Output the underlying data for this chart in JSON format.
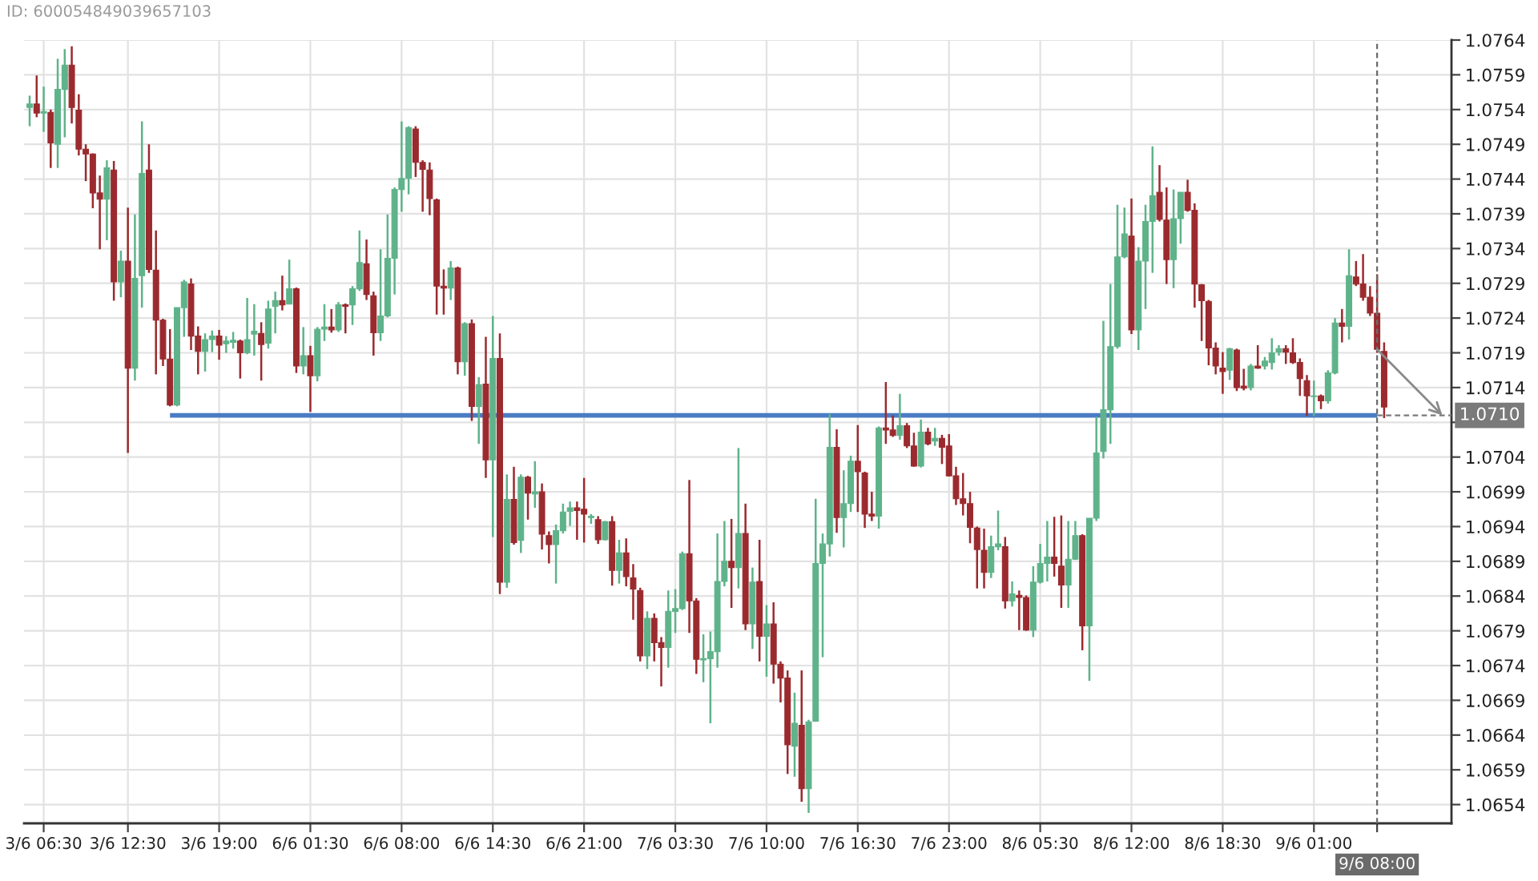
{
  "chart_data": {
    "type": "candlestick",
    "annotations": [
      "ID: 600054849039657103"
    ],
    "categories": [
      null,
      null,
      "3/6 06:30",
      null,
      null,
      null,
      null,
      null,
      null,
      null,
      null,
      null,
      null,
      null,
      "3/6 12:30",
      null,
      null,
      null,
      null,
      null,
      null,
      null,
      null,
      null,
      null,
      null,
      null,
      "3/6 19:00",
      null,
      null,
      null,
      null,
      null,
      null,
      null,
      null,
      null,
      null,
      null,
      null,
      "6/6 01:30",
      null,
      null,
      null,
      null,
      null,
      null,
      null,
      null,
      null,
      null,
      null,
      null,
      "6/6 08:00",
      null,
      null,
      null,
      null,
      null,
      null,
      null,
      null,
      null,
      null,
      null,
      null,
      "6/6 14:30",
      null,
      null,
      null,
      null,
      null,
      null,
      null,
      null,
      null,
      null,
      null,
      null,
      "6/6 21:00",
      null,
      null,
      null,
      null,
      null,
      null,
      null,
      null,
      null,
      null,
      null,
      null,
      "7/6 03:30",
      null,
      null,
      null,
      null,
      null,
      null,
      null,
      null,
      null,
      null,
      null,
      null,
      "7/6 10:00",
      null,
      null,
      null,
      null,
      null,
      null,
      null,
      null,
      null,
      null,
      null,
      null,
      "7/6 16:30",
      null,
      null,
      null,
      null,
      null,
      null,
      null,
      null,
      null,
      null,
      null,
      null,
      "7/6 23:00",
      null,
      null,
      null,
      null,
      null,
      null,
      null,
      null,
      null,
      null,
      null,
      null,
      "8/6 05:30",
      null,
      null,
      null,
      null,
      null,
      null,
      null,
      null,
      null,
      null,
      null,
      null,
      "8/6 12:00",
      null,
      null,
      null,
      null,
      null,
      null,
      null,
      null,
      null,
      null,
      null,
      null,
      "8/6 18:30",
      null,
      null,
      null,
      null,
      null,
      null,
      null,
      null,
      null,
      null,
      null,
      null,
      "9/6 01:00",
      null,
      null,
      null,
      null,
      null,
      null,
      null,
      null,
      "9/6 08:00",
      null
    ],
    "ohlc": [
      [
        1.07543,
        1.0756,
        1.07516,
        1.07548
      ],
      [
        1.07548,
        1.07589,
        1.07529,
        1.07535
      ],
      [
        1.07535,
        1.07573,
        1.07508,
        1.07537
      ],
      [
        1.07536,
        1.0754,
        1.07456,
        1.07492
      ],
      [
        1.0749,
        1.07613,
        1.07456,
        1.07569
      ],
      [
        1.07569,
        1.07627,
        1.075,
        1.07604
      ],
      [
        1.07604,
        1.07631,
        1.0752,
        1.07543
      ],
      [
        1.07539,
        1.07562,
        1.07474,
        1.07483
      ],
      [
        1.07483,
        1.0749,
        1.07437,
        1.07476
      ],
      [
        1.07476,
        1.07477,
        1.07398,
        1.0742
      ],
      [
        1.0742,
        1.07445,
        1.07339,
        1.07411
      ],
      [
        1.07411,
        1.07467,
        1.07352,
        1.07456
      ],
      [
        1.07453,
        1.07466,
        1.07265,
        1.07292
      ],
      [
        1.07292,
        1.07337,
        1.0727,
        1.07322
      ],
      [
        1.07322,
        1.07399,
        1.07046,
        1.07168
      ],
      [
        1.07168,
        1.07389,
        1.0715,
        1.07297
      ],
      [
        1.07301,
        1.07523,
        1.07255,
        1.07448
      ],
      [
        1.07453,
        1.0749,
        1.07305,
        1.0731
      ],
      [
        1.07309,
        1.07366,
        1.07159,
        1.07237
      ],
      [
        1.07237,
        1.07239,
        1.07171,
        1.07181
      ],
      [
        1.07181,
        1.07224,
        1.07113,
        1.07115
      ],
      [
        1.07115,
        1.07255,
        1.07113,
        1.07255
      ],
      [
        1.07255,
        1.07295,
        1.07213,
        1.07292
      ],
      [
        1.07289,
        1.07297,
        1.07194,
        1.07214
      ],
      [
        1.07214,
        1.07228,
        1.07159,
        1.07192
      ],
      [
        1.07192,
        1.07218,
        1.07163,
        1.07209
      ],
      [
        1.07209,
        1.07222,
        1.07191,
        1.07214
      ],
      [
        1.07214,
        1.07223,
        1.0718,
        1.07201
      ],
      [
        1.07203,
        1.07214,
        1.0719,
        1.07207
      ],
      [
        1.07205,
        1.0722,
        1.07196,
        1.07208
      ],
      [
        1.07207,
        1.07209,
        1.07153,
        1.0719
      ],
      [
        1.0719,
        1.07269,
        1.07188,
        1.07209
      ],
      [
        1.07217,
        1.0726,
        1.07186,
        1.07221
      ],
      [
        1.07218,
        1.07234,
        1.0715,
        1.07202
      ],
      [
        1.07204,
        1.07265,
        1.07196,
        1.07253
      ],
      [
        1.07257,
        1.07278,
        1.07218,
        1.07265
      ],
      [
        1.07265,
        1.07301,
        1.07251,
        1.07259
      ],
      [
        1.0726,
        1.07324,
        1.0726,
        1.07282
      ],
      [
        1.07282,
        1.07284,
        1.07161,
        1.07171
      ],
      [
        1.07171,
        1.07227,
        1.07159,
        1.07186
      ],
      [
        1.07186,
        1.072,
        1.07105,
        1.07157
      ],
      [
        1.07157,
        1.07227,
        1.07149,
        1.07224
      ],
      [
        1.07224,
        1.0726,
        1.07207,
        1.07227
      ],
      [
        1.07227,
        1.07253,
        1.07219,
        1.07223
      ],
      [
        1.07223,
        1.07263,
        1.0722,
        1.07259
      ],
      [
        1.07259,
        1.07261,
        1.07218,
        1.07257
      ],
      [
        1.07259,
        1.07286,
        1.0723,
        1.07282
      ],
      [
        1.07282,
        1.07366,
        1.07279,
        1.0732
      ],
      [
        1.07318,
        1.07353,
        1.07266,
        1.07274
      ],
      [
        1.07272,
        1.07278,
        1.07186,
        1.07219
      ],
      [
        1.07219,
        1.07339,
        1.07207,
        1.07243
      ],
      [
        1.07243,
        1.07389,
        1.07241,
        1.07326
      ],
      [
        1.07326,
        1.07428,
        1.07274,
        1.07425
      ],
      [
        1.07425,
        1.07523,
        1.07393,
        1.07441
      ],
      [
        1.07441,
        1.07516,
        1.07418,
        1.07514
      ],
      [
        1.07512,
        1.07516,
        1.07443,
        1.07464
      ],
      [
        1.07464,
        1.07467,
        1.07393,
        1.07454
      ],
      [
        1.07453,
        1.07464,
        1.07388,
        1.07412
      ],
      [
        1.0741,
        1.07412,
        1.07245,
        1.07286
      ],
      [
        1.07286,
        1.0731,
        1.07245,
        1.07283
      ],
      [
        1.07283,
        1.07322,
        1.07266,
        1.07312
      ],
      [
        1.07312,
        1.07314,
        1.07159,
        1.07177
      ],
      [
        1.07177,
        1.07234,
        1.07157,
        1.07232
      ],
      [
        1.07232,
        1.07238,
        1.07092,
        1.07113
      ],
      [
        1.07113,
        1.07155,
        1.07059,
        1.07144
      ],
      [
        1.07145,
        1.07213,
        1.0701,
        1.07036
      ],
      [
        1.07036,
        1.07243,
        1.06925,
        1.07182
      ],
      [
        1.07182,
        1.07218,
        1.06843,
        1.0686
      ],
      [
        1.0686,
        1.07015,
        1.06852,
        1.06979
      ],
      [
        1.06979,
        1.07026,
        1.06914,
        1.06917
      ],
      [
        1.0692,
        1.07015,
        1.06902,
        1.07011
      ],
      [
        1.07011,
        1.07013,
        1.0695,
        1.06988
      ],
      [
        1.06987,
        1.07034,
        1.06967,
        1.0699
      ],
      [
        1.0699,
        1.07002,
        1.06907,
        1.06929
      ],
      [
        1.06927,
        1.06933,
        1.06887,
        1.06914
      ],
      [
        1.06914,
        1.06943,
        1.06858,
        1.06934
      ],
      [
        1.06934,
        1.06973,
        1.0693,
        1.06961
      ],
      [
        1.06962,
        1.06976,
        1.06941,
        1.06967
      ],
      [
        1.06967,
        1.06976,
        1.06921,
        1.06963
      ],
      [
        1.06965,
        1.0701,
        1.06917,
        1.06958
      ],
      [
        1.06953,
        1.06958,
        1.06944,
        1.06955
      ],
      [
        1.0695,
        1.06955,
        1.06915,
        1.06921
      ],
      [
        1.06921,
        1.06948,
        1.0692,
        1.06947
      ],
      [
        1.06947,
        1.06955,
        1.06855,
        1.06877
      ],
      [
        1.06877,
        1.06921,
        1.06858,
        1.06902
      ],
      [
        1.06902,
        1.06923,
        1.06854,
        1.06868
      ],
      [
        1.06866,
        1.06886,
        1.06806,
        1.0685
      ],
      [
        1.06848,
        1.06852,
        1.06746,
        1.06754
      ],
      [
        1.06754,
        1.06818,
        1.06735,
        1.06808
      ],
      [
        1.06808,
        1.06815,
        1.06746,
        1.06773
      ],
      [
        1.06773,
        1.06781,
        1.0671,
        1.06766
      ],
      [
        1.06766,
        1.06848,
        1.06737,
        1.06818
      ],
      [
        1.06818,
        1.0685,
        1.06787,
        1.06822
      ],
      [
        1.06822,
        1.06904,
        1.0682,
        1.06901
      ],
      [
        1.06901,
        1.07007,
        1.06787,
        1.06833
      ],
      [
        1.06833,
        1.06837,
        1.06728,
        1.06749
      ],
      [
        1.06748,
        1.06785,
        1.06716,
        1.0675
      ],
      [
        1.0675,
        1.06789,
        1.06657,
        1.0676
      ],
      [
        1.0676,
        1.0693,
        1.06737,
        1.06861
      ],
      [
        1.06861,
        1.06948,
        1.06854,
        1.0689
      ],
      [
        1.0689,
        1.06951,
        1.06823,
        1.06881
      ],
      [
        1.06881,
        1.07053,
        1.06851,
        1.0693
      ],
      [
        1.0693,
        1.06973,
        1.06791,
        1.068
      ],
      [
        1.068,
        1.06881,
        1.06764,
        1.0686
      ],
      [
        1.06861,
        1.06921,
        1.06746,
        1.06782
      ],
      [
        1.06782,
        1.06827,
        1.06724,
        1.068
      ],
      [
        1.068,
        1.06831,
        1.06714,
        1.06742
      ],
      [
        1.06742,
        1.06746,
        1.06687,
        1.06722
      ],
      [
        1.06722,
        1.06733,
        1.06584,
        1.06626
      ],
      [
        1.06624,
        1.06701,
        1.0658,
        1.06657
      ],
      [
        1.06654,
        1.06733,
        1.06544,
        1.06563
      ],
      [
        1.06563,
        1.06662,
        1.06528,
        1.06659
      ],
      [
        1.0666,
        1.0698,
        1.06659,
        1.06887
      ],
      [
        1.06887,
        1.0693,
        1.06752,
        1.06915
      ],
      [
        1.06915,
        1.07102,
        1.06897,
        1.07054
      ],
      [
        1.07054,
        1.0708,
        1.06931,
        1.06953
      ],
      [
        1.06953,
        1.07021,
        1.0691,
        1.06973
      ],
      [
        1.06973,
        1.07042,
        1.06961,
        1.07034
      ],
      [
        1.07034,
        1.07086,
        1.06961,
        1.07019
      ],
      [
        1.07017,
        1.07019,
        1.06938,
        1.06958
      ],
      [
        1.06958,
        1.0699,
        1.06948,
        1.06955
      ],
      [
        1.06955,
        1.07084,
        1.06937,
        1.07082
      ],
      [
        1.07082,
        1.07148,
        1.07059,
        1.07079
      ],
      [
        1.07079,
        1.071,
        1.07069,
        1.07071
      ],
      [
        1.07071,
        1.07131,
        1.07065,
        1.07085
      ],
      [
        1.07085,
        1.07089,
        1.07053,
        1.07056
      ],
      [
        1.07056,
        1.07075,
        1.07026,
        1.07027
      ],
      [
        1.07027,
        1.07094,
        1.07025,
        1.07076
      ],
      [
        1.07076,
        1.07082,
        1.07057,
        1.07059
      ],
      [
        1.07063,
        1.07082,
        1.07056,
        1.07067
      ],
      [
        1.07067,
        1.07072,
        1.0703,
        1.07054
      ],
      [
        1.07056,
        1.07073,
        1.07012,
        1.07013
      ],
      [
        1.07013,
        1.07026,
        1.06971,
        1.0698
      ],
      [
        1.0698,
        1.07017,
        1.06956,
        1.06973
      ],
      [
        1.06973,
        1.0699,
        1.06916,
        1.06939
      ],
      [
        1.06938,
        1.0694,
        1.06851,
        1.06907
      ],
      [
        1.06906,
        1.06937,
        1.06851,
        1.06874
      ],
      [
        1.06874,
        1.06927,
        1.06866,
        1.06911
      ],
      [
        1.06911,
        1.06963,
        1.06906,
        1.06915
      ],
      [
        1.06911,
        1.06925,
        1.06822,
        1.06833
      ],
      [
        1.06833,
        1.06861,
        1.06825,
        1.06843
      ],
      [
        1.06841,
        1.06848,
        1.06791,
        1.06838
      ],
      [
        1.06838,
        1.06841,
        1.0679,
        1.06791
      ],
      [
        1.06791,
        1.06883,
        1.06781,
        1.0686
      ],
      [
        1.0686,
        1.06915,
        1.06858,
        1.06887
      ],
      [
        1.06887,
        1.06948,
        1.06861,
        1.06896
      ],
      [
        1.06896,
        1.06954,
        1.06868,
        1.06887
      ],
      [
        1.06883,
        1.06956,
        1.06823,
        1.06856
      ],
      [
        1.06856,
        1.06948,
        1.06823,
        1.06893
      ],
      [
        1.06893,
        1.06948,
        1.06892,
        1.06927
      ],
      [
        1.06927,
        1.06929,
        1.06762,
        1.06797
      ],
      [
        1.06797,
        1.06952,
        1.06718,
        1.06952
      ],
      [
        1.06952,
        1.07098,
        1.06948,
        1.07046
      ],
      [
        1.07048,
        1.07236,
        1.07038,
        1.07108
      ],
      [
        1.07108,
        1.07289,
        1.07059,
        1.07199
      ],
      [
        1.07199,
        1.07403,
        1.07196,
        1.07328
      ],
      [
        1.07328,
        1.07399,
        1.07326,
        1.07361
      ],
      [
        1.07358,
        1.07412,
        1.07217,
        1.07223
      ],
      [
        1.07223,
        1.07342,
        1.07194,
        1.07322
      ],
      [
        1.07322,
        1.07403,
        1.07253,
        1.07379
      ],
      [
        1.07379,
        1.07487,
        1.07305,
        1.07416
      ],
      [
        1.07421,
        1.0746,
        1.07379,
        1.07382
      ],
      [
        1.07381,
        1.07428,
        1.07289,
        1.07324
      ],
      [
        1.07324,
        1.07425,
        1.07283,
        1.07383
      ],
      [
        1.07383,
        1.07421,
        1.07347,
        1.07421
      ],
      [
        1.07421,
        1.07439,
        1.07393,
        1.07395
      ],
      [
        1.07395,
        1.07405,
        1.07255,
        1.07289
      ],
      [
        1.07288,
        1.07289,
        1.07207,
        1.07265
      ],
      [
        1.07264,
        1.07266,
        1.07172,
        1.07197
      ],
      [
        1.07197,
        1.07205,
        1.07159,
        1.07171
      ],
      [
        1.07168,
        1.07191,
        1.07131,
        1.07163
      ],
      [
        1.07165,
        1.07197,
        1.07151,
        1.07196
      ],
      [
        1.07194,
        1.07196,
        1.07135,
        1.0714
      ],
      [
        1.07142,
        1.07167,
        1.07136,
        1.07139
      ],
      [
        1.0714,
        1.07174,
        1.07136,
        1.07171
      ],
      [
        1.07171,
        1.07201,
        1.07167,
        1.07168
      ],
      [
        1.07171,
        1.07184,
        1.07166,
        1.07178
      ],
      [
        1.07176,
        1.07211,
        1.07166,
        1.0719
      ],
      [
        1.07191,
        1.07201,
        1.07186,
        1.07196
      ],
      [
        1.07196,
        1.07201,
        1.07174,
        1.07191
      ],
      [
        1.0719,
        1.07211,
        1.07174,
        1.07176
      ],
      [
        1.07176,
        1.07182,
        1.07128,
        1.07153
      ],
      [
        1.0715,
        1.07158,
        1.07099,
        1.07128
      ],
      [
        1.07127,
        1.0715,
        1.07099,
        1.07128
      ],
      [
        1.07128,
        1.0713,
        1.07109,
        1.07121
      ],
      [
        1.07121,
        1.07165,
        1.07117,
        1.07161
      ],
      [
        1.07161,
        1.0724,
        1.07159,
        1.07233
      ],
      [
        1.07233,
        1.07253,
        1.07205,
        1.07228
      ],
      [
        1.07228,
        1.07339,
        1.07209,
        1.07301
      ],
      [
        1.07299,
        1.07322,
        1.07286,
        1.07289
      ],
      [
        1.07289,
        1.07332,
        1.07265,
        1.0727
      ],
      [
        1.0727,
        1.07286,
        1.07243,
        1.07247
      ],
      [
        1.07247,
        1.07303,
        1.0719,
        1.07195
      ],
      [
        1.07192,
        1.07205,
        1.07096,
        1.07112
      ]
    ],
    "colors": [
      "#5fb38a",
      "#9b2a2e",
      "#5fb38a",
      "#9b2a2e",
      "#5fb38a",
      "#5fb38a",
      "#9b2a2e",
      "#9b2a2e",
      "#9b2a2e",
      "#9b2a2e",
      "#9b2a2e",
      "#5fb38a",
      "#9b2a2e",
      "#5fb38a",
      "#9b2a2e",
      "#5fb38a",
      "#5fb38a",
      "#9b2a2e",
      "#9b2a2e",
      "#9b2a2e",
      "#9b2a2e",
      "#5fb38a",
      "#5fb38a",
      "#9b2a2e",
      "#9b2a2e",
      "#5fb38a",
      "#5fb38a",
      "#9b2a2e",
      "#5fb38a",
      "#5fb38a",
      "#9b2a2e",
      "#5fb38a",
      "#5fb38a",
      "#9b2a2e",
      "#5fb38a",
      "#5fb38a",
      "#9b2a2e",
      "#5fb38a",
      "#9b2a2e",
      "#5fb38a",
      "#9b2a2e",
      "#5fb38a",
      "#5fb38a",
      "#9b2a2e",
      "#5fb38a",
      "#9b2a2e",
      "#5fb38a",
      "#5fb38a",
      "#9b2a2e",
      "#9b2a2e",
      "#5fb38a",
      "#5fb38a",
      "#5fb38a",
      "#5fb38a",
      "#5fb38a",
      "#9b2a2e",
      "#9b2a2e",
      "#9b2a2e",
      "#9b2a2e",
      "#9b2a2e",
      "#5fb38a",
      "#9b2a2e",
      "#5fb38a",
      "#9b2a2e",
      "#5fb38a",
      "#9b2a2e",
      "#5fb38a",
      "#9b2a2e",
      "#5fb38a",
      "#9b2a2e",
      "#5fb38a",
      "#9b2a2e",
      "#5fb38a",
      "#9b2a2e",
      "#9b2a2e",
      "#5fb38a",
      "#5fb38a",
      "#5fb38a",
      "#9b2a2e",
      "#9b2a2e",
      "#5fb38a",
      "#9b2a2e",
      "#5fb38a",
      "#9b2a2e",
      "#5fb38a",
      "#9b2a2e",
      "#9b2a2e",
      "#9b2a2e",
      "#5fb38a",
      "#9b2a2e",
      "#9b2a2e",
      "#5fb38a",
      "#5fb38a",
      "#5fb38a",
      "#9b2a2e",
      "#9b2a2e",
      "#5fb38a",
      "#5fb38a",
      "#5fb38a",
      "#5fb38a",
      "#9b2a2e",
      "#5fb38a",
      "#9b2a2e",
      "#5fb38a",
      "#9b2a2e",
      "#5fb38a",
      "#9b2a2e",
      "#9b2a2e",
      "#9b2a2e",
      "#5fb38a",
      "#9b2a2e",
      "#5fb38a",
      "#5fb38a",
      "#5fb38a",
      "#5fb38a",
      "#9b2a2e",
      "#5fb38a",
      "#5fb38a",
      "#9b2a2e",
      "#9b2a2e",
      "#9b2a2e",
      "#5fb38a",
      "#9b2a2e",
      "#9b2a2e",
      "#5fb38a",
      "#9b2a2e",
      "#9b2a2e",
      "#5fb38a",
      "#9b2a2e",
      "#5fb38a",
      "#9b2a2e",
      "#9b2a2e",
      "#9b2a2e",
      "#9b2a2e",
      "#9b2a2e",
      "#9b2a2e",
      "#9b2a2e",
      "#5fb38a",
      "#5fb38a",
      "#9b2a2e",
      "#5fb38a",
      "#9b2a2e",
      "#9b2a2e",
      "#5fb38a",
      "#5fb38a",
      "#5fb38a",
      "#9b2a2e",
      "#9b2a2e",
      "#5fb38a",
      "#5fb38a",
      "#9b2a2e",
      "#5fb38a",
      "#5fb38a",
      "#5fb38a",
      "#5fb38a",
      "#5fb38a",
      "#5fb38a",
      "#9b2a2e",
      "#5fb38a",
      "#5fb38a",
      "#5fb38a",
      "#9b2a2e",
      "#9b2a2e",
      "#5fb38a",
      "#5fb38a",
      "#9b2a2e",
      "#9b2a2e",
      "#9b2a2e",
      "#9b2a2e",
      "#9b2a2e",
      "#9b2a2e",
      "#5fb38a",
      "#9b2a2e",
      "#9b2a2e",
      "#5fb38a",
      "#9b2a2e",
      "#5fb38a",
      "#5fb38a",
      "#5fb38a",
      "#9b2a2e",
      "#9b2a2e",
      "#9b2a2e",
      "#9b2a2e",
      "#5fb38a",
      "#9b2a2e",
      "#5fb38a",
      "#5fb38a",
      "#9b2a2e",
      "#5fb38a",
      "#9b2a2e",
      "#9b2a2e",
      "#9b2a2e",
      "#9b2a2e",
      "#9b2a2e"
    ],
    "series": [
      {
        "type": "line",
        "color": "#4a7bc4",
        "values": [
          null,
          null,
          null,
          null,
          null,
          null,
          null,
          null,
          null,
          null,
          null,
          null,
          null,
          null,
          null,
          null,
          null,
          null,
          null,
          null,
          1.071,
          1.071,
          1.071,
          1.071,
          1.071,
          1.071,
          1.071,
          1.071,
          1.071,
          1.071,
          1.071,
          1.071,
          1.071,
          1.071,
          1.071,
          1.071,
          1.071,
          1.071,
          1.071,
          1.071,
          1.071,
          1.071,
          1.071,
          1.071,
          1.071,
          1.071,
          1.071,
          1.071,
          1.071,
          1.071,
          1.071,
          1.071,
          1.071,
          1.071,
          1.071,
          1.071,
          1.071,
          1.071,
          1.071,
          1.071,
          1.071,
          1.071,
          1.071,
          1.071,
          1.071,
          1.071,
          1.071,
          1.071,
          1.071,
          1.071,
          1.071,
          1.071,
          1.071,
          1.071,
          1.071,
          1.071,
          1.071,
          1.071,
          1.071,
          1.071,
          1.071,
          1.071,
          1.071,
          1.071,
          1.071,
          1.071,
          1.071,
          1.071,
          1.071,
          1.071,
          1.071,
          1.071,
          1.071,
          1.071,
          1.071,
          1.071,
          1.071,
          1.071,
          1.071,
          1.071,
          1.071,
          1.071,
          1.071,
          1.071,
          1.071,
          1.071,
          1.071,
          1.071,
          1.071,
          1.071,
          1.071,
          1.071,
          1.071,
          1.071,
          1.071,
          1.071,
          1.071,
          1.071,
          1.071,
          1.071,
          1.071,
          1.071,
          1.071,
          1.071,
          1.071,
          1.071,
          1.071,
          1.071,
          1.071,
          1.071,
          1.071,
          1.071,
          1.071,
          1.071,
          1.071,
          1.071,
          1.071,
          1.071,
          1.071,
          1.071,
          1.071,
          1.071,
          1.071,
          1.071,
          1.071,
          1.071,
          1.071,
          1.071,
          1.071,
          1.071,
          1.071,
          1.071,
          1.071,
          1.071,
          1.071,
          1.071,
          1.071,
          1.071,
          1.071,
          1.071,
          1.071,
          1.071,
          1.071,
          1.071,
          1.071,
          1.071,
          1.071,
          1.071,
          1.071,
          1.071,
          1.071,
          1.071,
          1.071,
          1.071,
          1.071,
          1.071,
          1.071,
          1.071,
          1.071,
          1.071,
          1.071,
          1.071,
          1.071,
          1.071,
          1.071,
          1.071,
          1.071,
          1.071,
          1.071,
          1.071,
          1.071,
          1.071,
          1.071,
          null
        ]
      }
    ],
    "ylim": [
      1.06513,
      1.0764
    ],
    "yticks": [
      1.0654,
      1.0659,
      1.0664,
      1.0669,
      1.0674,
      1.0679,
      1.0684,
      1.0689,
      1.0694,
      1.0699,
      1.0704,
      {
        "value": 1.0709,
        "label": null
      },
      1.0714,
      1.0719,
      1.0724,
      1.0729,
      1.0734,
      1.0739,
      1.0744,
      1.0749,
      1.0754,
      1.0759,
      1.0764
    ],
    "grid": true,
    "ref_lines": [
      {
        "axis": "x",
        "value": "9/6 08:00",
        "line_style": "dashed",
        "color": "#6b6b6b"
      },
      {
        "axis": "y",
        "value": 1.071,
        "label": "1.0710",
        "line_style": "dashed",
        "color": "#7a7a7a"
      }
    ]
  }
}
